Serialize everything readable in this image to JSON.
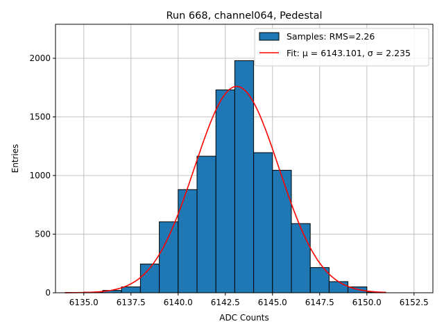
{
  "chart_data": {
    "type": "bar",
    "title": "Run 668, channel064, Pedestal",
    "xlabel": "ADC Counts",
    "ylabel": "Entries",
    "xlim": [
      6133.5,
      6153.5
    ],
    "ylim": [
      0,
      2290
    ],
    "grid": true,
    "legend_placement": "top-right",
    "xticks": [
      6135.0,
      6137.5,
      6140.0,
      6142.5,
      6145.0,
      6147.5,
      6150.0,
      6152.5
    ],
    "xtick_labels": [
      "6135.0",
      "6137.5",
      "6140.0",
      "6142.5",
      "6145.0",
      "6147.5",
      "6150.0",
      "6152.5"
    ],
    "yticks": [
      0,
      500,
      1000,
      1500,
      2000
    ],
    "ytick_labels": [
      "0",
      "500",
      "1000",
      "1500",
      "2000"
    ],
    "histogram": {
      "name": "Samples: RMS=2.26",
      "color": "#1f77b4",
      "edge_color": "#000000",
      "bin_edges": [
        6134,
        6135,
        6136,
        6137,
        6138,
        6139,
        6140,
        6141,
        6142,
        6143,
        6144,
        6145,
        6146,
        6147,
        6148,
        6149,
        6150,
        6151
      ],
      "counts": [
        2,
        5,
        20,
        50,
        245,
        605,
        880,
        1165,
        1730,
        1980,
        1195,
        1045,
        590,
        215,
        95,
        50,
        5
      ]
    },
    "fit": {
      "name": "Fit: μ = 6143.101, σ = 2.235",
      "color": "#ff0000",
      "mu": 6143.101,
      "sigma": 2.235,
      "amplitude": 1760,
      "x_range": [
        6134,
        6151
      ]
    }
  }
}
